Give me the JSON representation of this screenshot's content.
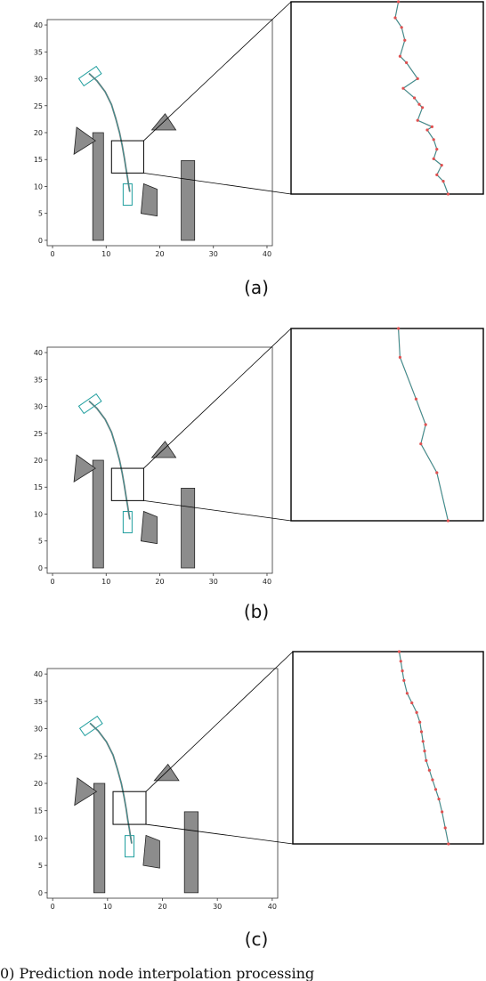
{
  "figure": {
    "caption": "0)   Prediction node interpolation processing"
  },
  "colors": {
    "obstacle_fill": "#8c8c8c",
    "obstacle_edge": "#222222",
    "vehicle": "#1f9e9e",
    "path": "#777777",
    "node": "#e05050"
  },
  "chart_data": [
    {
      "type": "line",
      "panel_label": "(a)",
      "xlim": [
        -1,
        41
      ],
      "ylim": [
        -1,
        41
      ],
      "xticks": [
        0,
        10,
        20,
        30,
        40
      ],
      "yticks": [
        0,
        5,
        10,
        15,
        20,
        25,
        30,
        35,
        40
      ],
      "obstacles": [
        [
          [
            7.5,
            0
          ],
          [
            9.5,
            0
          ],
          [
            9.5,
            20
          ],
          [
            7.5,
            20
          ]
        ],
        [
          [
            24,
            0
          ],
          [
            26.5,
            0
          ],
          [
            26.5,
            14.8
          ],
          [
            24,
            14.8
          ]
        ],
        [
          [
            4,
            16
          ],
          [
            4.5,
            21
          ],
          [
            8,
            18.5
          ]
        ],
        [
          [
            18.5,
            20.5
          ],
          [
            21,
            23.5
          ],
          [
            23,
            20.5
          ]
        ],
        [
          [
            16.5,
            5
          ],
          [
            19.5,
            4.5
          ],
          [
            19.5,
            9.5
          ],
          [
            17,
            10.5
          ]
        ]
      ],
      "start_vehicle": {
        "x": 7,
        "y": 30.5,
        "angle_deg": 35
      },
      "goal_vehicle": {
        "x": 14,
        "y": 8.5,
        "angle_deg": 90
      },
      "path": {
        "x": [
          6.8,
          8.3,
          9.8,
          11.0,
          11.8,
          12.5,
          13.0,
          13.4,
          13.7,
          14.0,
          14.2,
          14.4
        ],
        "y": [
          31.0,
          29.6,
          27.6,
          25.2,
          22.6,
          20.0,
          17.6,
          15.3,
          13.3,
          11.5,
          10.2,
          9.0
        ]
      },
      "zoom_box": {
        "x": [
          11.0,
          17.0
        ],
        "y": [
          12.5,
          18.5
        ]
      },
      "zoom_nodes": {
        "x": [
          14.35,
          14.25,
          14.45,
          14.55,
          14.4,
          14.6,
          14.95,
          14.5,
          14.85,
          15.0,
          15.1,
          14.95,
          15.4,
          15.25,
          15.45,
          15.55,
          15.45,
          15.7,
          15.55,
          15.75,
          15.9
        ],
        "y": [
          18.5,
          18.0,
          17.7,
          17.3,
          16.8,
          16.6,
          16.1,
          15.8,
          15.5,
          15.3,
          15.2,
          14.8,
          14.6,
          14.5,
          14.2,
          13.9,
          13.6,
          13.4,
          13.1,
          12.9,
          12.5
        ]
      }
    },
    {
      "type": "line",
      "panel_label": "(b)",
      "xlim": [
        -1,
        41
      ],
      "ylim": [
        -1,
        41
      ],
      "xticks": [
        0,
        10,
        20,
        30,
        40
      ],
      "yticks": [
        0,
        5,
        10,
        15,
        20,
        25,
        30,
        35,
        40
      ],
      "obstacles": [
        [
          [
            7.5,
            0
          ],
          [
            9.5,
            0
          ],
          [
            9.5,
            20
          ],
          [
            7.5,
            20
          ]
        ],
        [
          [
            24,
            0
          ],
          [
            26.5,
            0
          ],
          [
            26.5,
            14.8
          ],
          [
            24,
            14.8
          ]
        ],
        [
          [
            4,
            16
          ],
          [
            4.5,
            21
          ],
          [
            8,
            18.5
          ]
        ],
        [
          [
            18.5,
            20.5
          ],
          [
            21,
            23.5
          ],
          [
            23,
            20.5
          ]
        ],
        [
          [
            16.5,
            5
          ],
          [
            19.5,
            4.5
          ],
          [
            19.5,
            9.5
          ],
          [
            17,
            10.5
          ]
        ]
      ],
      "start_vehicle": {
        "x": 7,
        "y": 30.5,
        "angle_deg": 35
      },
      "goal_vehicle": {
        "x": 14,
        "y": 8.5,
        "angle_deg": 90
      },
      "path": {
        "x": [
          6.8,
          8.3,
          9.8,
          11.0,
          11.8,
          12.5,
          13.0,
          13.4,
          13.7,
          14.0,
          14.2,
          14.4
        ],
        "y": [
          31.0,
          29.6,
          27.6,
          25.2,
          22.6,
          20.0,
          17.6,
          15.3,
          13.3,
          11.5,
          10.2,
          9.0
        ]
      },
      "zoom_box": {
        "x": [
          11.0,
          17.0
        ],
        "y": [
          12.5,
          18.5
        ]
      },
      "zoom_nodes": {
        "x": [
          14.35,
          14.4,
          14.9,
          15.2,
          15.05,
          15.55,
          15.9
        ],
        "y": [
          18.5,
          17.6,
          16.3,
          15.5,
          14.9,
          14.0,
          12.5
        ]
      }
    },
    {
      "type": "line",
      "panel_label": "(c)",
      "xlim": [
        -1,
        41
      ],
      "ylim": [
        -1,
        41
      ],
      "xticks": [
        0,
        10,
        20,
        30,
        40
      ],
      "yticks": [
        0,
        5,
        10,
        15,
        20,
        25,
        30,
        35,
        40
      ],
      "obstacles": [
        [
          [
            7.5,
            0
          ],
          [
            9.5,
            0
          ],
          [
            9.5,
            20
          ],
          [
            7.5,
            20
          ]
        ],
        [
          [
            24,
            0
          ],
          [
            26.5,
            0
          ],
          [
            26.5,
            14.8
          ],
          [
            24,
            14.8
          ]
        ],
        [
          [
            4,
            16
          ],
          [
            4.5,
            21
          ],
          [
            8,
            18.5
          ]
        ],
        [
          [
            18.5,
            20.5
          ],
          [
            21,
            23.5
          ],
          [
            23,
            20.5
          ]
        ],
        [
          [
            16.5,
            5
          ],
          [
            19.5,
            4.5
          ],
          [
            19.5,
            9.5
          ],
          [
            17,
            10.5
          ]
        ]
      ],
      "start_vehicle": {
        "x": 7,
        "y": 30.5,
        "angle_deg": 35
      },
      "goal_vehicle": {
        "x": 14,
        "y": 8.5,
        "angle_deg": 90
      },
      "path": {
        "x": [
          6.8,
          8.3,
          9.8,
          11.0,
          11.8,
          12.5,
          13.0,
          13.4,
          13.7,
          14.0,
          14.2,
          14.4
        ],
        "y": [
          31.0,
          29.6,
          27.6,
          25.2,
          22.6,
          20.0,
          17.6,
          15.3,
          13.3,
          11.5,
          10.2,
          9.0
        ]
      },
      "zoom_box": {
        "x": [
          11.0,
          17.0
        ],
        "y": [
          12.5,
          18.5
        ]
      },
      "zoom_nodes": {
        "x": [
          14.35,
          14.4,
          14.45,
          14.5,
          14.6,
          14.75,
          14.9,
          15.0,
          15.05,
          15.1,
          15.15,
          15.2,
          15.3,
          15.4,
          15.5,
          15.6,
          15.7,
          15.8,
          15.9
        ],
        "y": [
          18.5,
          18.2,
          17.9,
          17.6,
          17.2,
          16.9,
          16.6,
          16.3,
          16.0,
          15.7,
          15.4,
          15.1,
          14.8,
          14.5,
          14.2,
          13.9,
          13.5,
          13.0,
          12.5
        ]
      }
    }
  ]
}
